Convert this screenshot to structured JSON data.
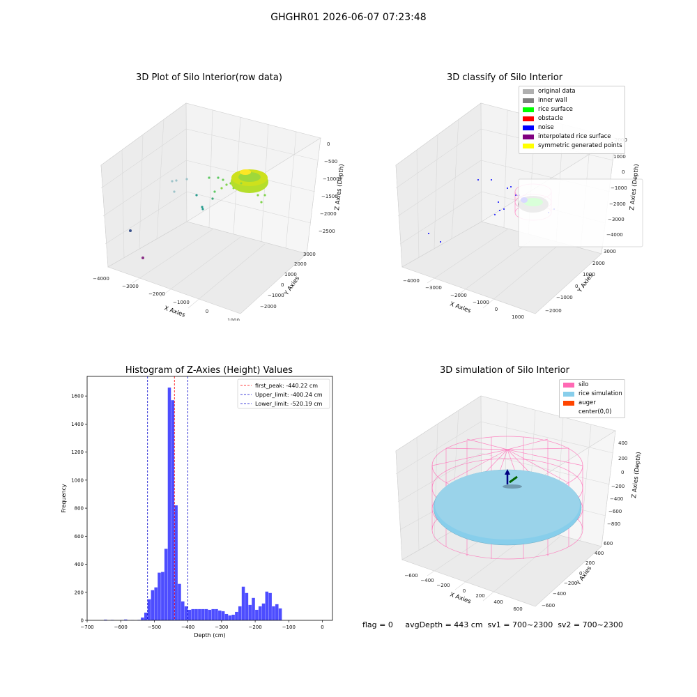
{
  "suptitle": "GHGHR01 2026-06-07 07:23:48",
  "footer": "flag = 0     avgDepth = 443 cm  sv1 = 700~2300  sv2 = 700~2300",
  "colors": {
    "histogram_bar": "#4d4dff",
    "peak_line": "#ff0000",
    "limit_line": "#0000cc",
    "silo": "#ff69b4",
    "rice_simulation": "#87ceeb",
    "auger": "#ff4500",
    "original_data": "#b0b0b0",
    "inner_wall": "#808080",
    "rice_surface": "#00ff00",
    "obstacle": "#ff0000",
    "noise": "#0000ff",
    "interpolated_rice_surface": "#800080",
    "symmetric_generated_points": "#ffff00"
  },
  "chart_data": [
    {
      "type": "scatter",
      "subtype": "3d",
      "title": "3D Plot of Silo Interior(row data)",
      "xlabel": "X Axies",
      "ylabel": "Y Axies",
      "zlabel": "Z Axies (Depth)",
      "x_ticks": [
        "−4000",
        "−3000",
        "−2000",
        "−1000",
        "0",
        "1000"
      ],
      "y_ticks": [
        "−2000",
        "−1000",
        "0",
        "1000",
        "2000",
        "3000"
      ],
      "z_ticks": [
        "0",
        "−500",
        "−1000",
        "−1500",
        "−2000",
        "−2500"
      ],
      "colormap": "viridis"
    },
    {
      "type": "scatter",
      "subtype": "3d",
      "title": "3D classify of Silo Interior",
      "xlabel": "X Axies",
      "ylabel": "Y Axies",
      "zlabel": "Z Axies (Depth)",
      "x_ticks": [
        "−4000",
        "−3000",
        "−2000",
        "−1000",
        "0",
        "1000"
      ],
      "y_ticks": [
        "−2000",
        "−1000",
        "0",
        "1000",
        "2000",
        "3000"
      ],
      "z_ticks": [
        "2000",
        "1000",
        "0",
        "−1000",
        "−2000",
        "−3000",
        "−4000"
      ],
      "legend": [
        "original data",
        "inner wall",
        "rice surface",
        "obstacle",
        "noise",
        "interpolated rice surface",
        "symmetric generated points"
      ],
      "legend_position": "top-right"
    },
    {
      "type": "bar",
      "subtype": "histogram",
      "title": "Histogram of Z-Axies (Height) Values",
      "xlabel": "Depth (cm)",
      "ylabel": "Frequency",
      "xlim": [
        -700,
        30
      ],
      "ylim": [
        0,
        1740
      ],
      "x_ticks": [
        -700,
        -600,
        -500,
        -400,
        -300,
        -200,
        -100,
        0
      ],
      "x_tick_labels": [
        "−700",
        "−600",
        "−500",
        "−400",
        "−300",
        "−200",
        "−100",
        "0"
      ],
      "y_ticks": [
        0,
        200,
        400,
        600,
        800,
        1000,
        1200,
        1400,
        1600
      ],
      "bin_width": 10,
      "bins": [
        [
          -650,
          5
        ],
        [
          -630,
          3
        ],
        [
          -600,
          2
        ],
        [
          -590,
          6
        ],
        [
          -570,
          2
        ],
        [
          -550,
          3
        ],
        [
          -540,
          20
        ],
        [
          -530,
          55
        ],
        [
          -520,
          150
        ],
        [
          -510,
          215
        ],
        [
          -500,
          235
        ],
        [
          -490,
          340
        ],
        [
          -480,
          345
        ],
        [
          -470,
          510
        ],
        [
          -460,
          1660
        ],
        [
          -450,
          1570
        ],
        [
          -440,
          820
        ],
        [
          -430,
          260
        ],
        [
          -420,
          135
        ],
        [
          -410,
          100
        ],
        [
          -400,
          75
        ],
        [
          -390,
          80
        ],
        [
          -380,
          80
        ],
        [
          -370,
          80
        ],
        [
          -360,
          80
        ],
        [
          -350,
          80
        ],
        [
          -340,
          75
        ],
        [
          -330,
          80
        ],
        [
          -320,
          80
        ],
        [
          -310,
          70
        ],
        [
          -300,
          65
        ],
        [
          -290,
          45
        ],
        [
          -280,
          35
        ],
        [
          -270,
          40
        ],
        [
          -260,
          60
        ],
        [
          -250,
          100
        ],
        [
          -240,
          240
        ],
        [
          -230,
          195
        ],
        [
          -220,
          110
        ],
        [
          -210,
          160
        ],
        [
          -200,
          75
        ],
        [
          -190,
          100
        ],
        [
          -180,
          120
        ],
        [
          -170,
          205
        ],
        [
          -160,
          195
        ],
        [
          -150,
          100
        ],
        [
          -140,
          115
        ],
        [
          -130,
          85
        ]
      ],
      "vlines": [
        {
          "label": "first_peak: -440.22 cm",
          "x": -440.22,
          "color": "#ff0000"
        },
        {
          "label": "Upper_limit: -400.24 cm",
          "x": -400.24,
          "color": "#0000cc"
        },
        {
          "label": "Lower_limit: -520.19 cm",
          "x": -520.19,
          "color": "#0000cc"
        }
      ],
      "legend_position": "top-right"
    },
    {
      "type": "scatter",
      "subtype": "3d",
      "title": "3D simulation of Silo Interior",
      "xlabel": "X Axies",
      "ylabel": "Y Axies",
      "zlabel": "Z Axies (Depth)",
      "x_ticks": [
        "−600",
        "−400",
        "−200",
        "0",
        "200",
        "400",
        "600"
      ],
      "y_ticks": [
        "−600",
        "−400",
        "−200",
        "0",
        "200",
        "400",
        "600"
      ],
      "z_ticks": [
        "400",
        "200",
        "0",
        "−200",
        "−400",
        "−600",
        "−800"
      ],
      "legend": [
        "silo",
        "rice simulation",
        "auger",
        "center(0,0)"
      ],
      "legend_position": "top-right"
    }
  ]
}
